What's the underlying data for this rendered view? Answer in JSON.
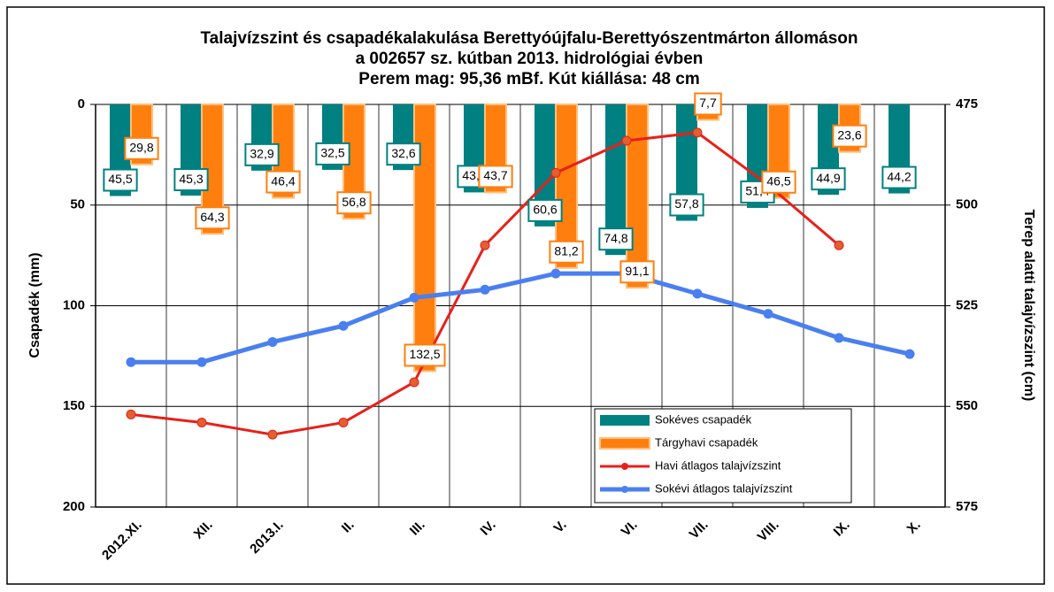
{
  "chart_data": {
    "type": "bar_line",
    "title": [
      "Talajvízszint és csapadékalakulása Berettyóújfalu-Berettyószentmárton állomáson",
      "a 002657 sz. kútban 2013. hidrológiai évben",
      "Perem mag: 95,36 mBf. Kút kiállása: 48 cm"
    ],
    "y_label": "Csapadék (mm)",
    "y2_label": "Terep alatti talajvízszint (cm)",
    "categories": [
      "2012.XI.",
      "XII.",
      "2013.I.",
      "II.",
      "III.",
      "IV.",
      "V.",
      "VI.",
      "VII.",
      "VIII.",
      "IX.",
      "X."
    ],
    "ylim": [
      0,
      200
    ],
    "yticks": [
      0,
      50,
      100,
      150,
      200
    ],
    "y_inverted": true,
    "y2lim": [
      475,
      575
    ],
    "y2ticks": [
      475,
      500,
      525,
      550,
      575
    ],
    "y2_inverted": true,
    "grid": true,
    "series": [
      {
        "name": "Sokéves csapadék",
        "color": "#008080",
        "kind": "bar",
        "values": [
          45.5,
          45.3,
          32.9,
          32.5,
          32.6,
          43.7,
          60.6,
          74.8,
          57.8,
          51.4,
          44.9,
          44.2
        ],
        "value_labels": [
          "45,5",
          "45,3",
          "32,9",
          "32,5",
          "32,6",
          "43,7",
          "60,6",
          "74,8",
          "57,8",
          "51,4",
          "44,9",
          "44,2"
        ]
      },
      {
        "name": "Tárgyhavi csapadék",
        "color": "#ff7f0e",
        "kind": "bar",
        "values": [
          29.8,
          64.3,
          46.4,
          56.8,
          132.5,
          43.7,
          81.2,
          91.1,
          7.7,
          46.5,
          23.6,
          null
        ],
        "value_labels": [
          "29,8",
          "64,3",
          "46,4",
          "56,8",
          "132,5",
          "43,7",
          "81,2",
          "91,1",
          "7,7",
          "46,5",
          "23,6",
          null
        ]
      },
      {
        "name": "Havi átlagos talajvízszint",
        "color": "#e8201a",
        "kind": "line",
        "axis": "y2",
        "values": [
          552,
          554,
          557,
          554,
          544,
          510,
          492,
          484,
          482,
          495,
          510,
          null
        ]
      },
      {
        "name": "Sokévi átlagos talajvízszint",
        "color": "#4a7ff0",
        "kind": "line",
        "axis": "y2",
        "values": [
          539,
          539,
          534,
          530,
          523,
          521,
          517,
          517,
          522,
          527,
          533,
          537
        ]
      }
    ]
  }
}
